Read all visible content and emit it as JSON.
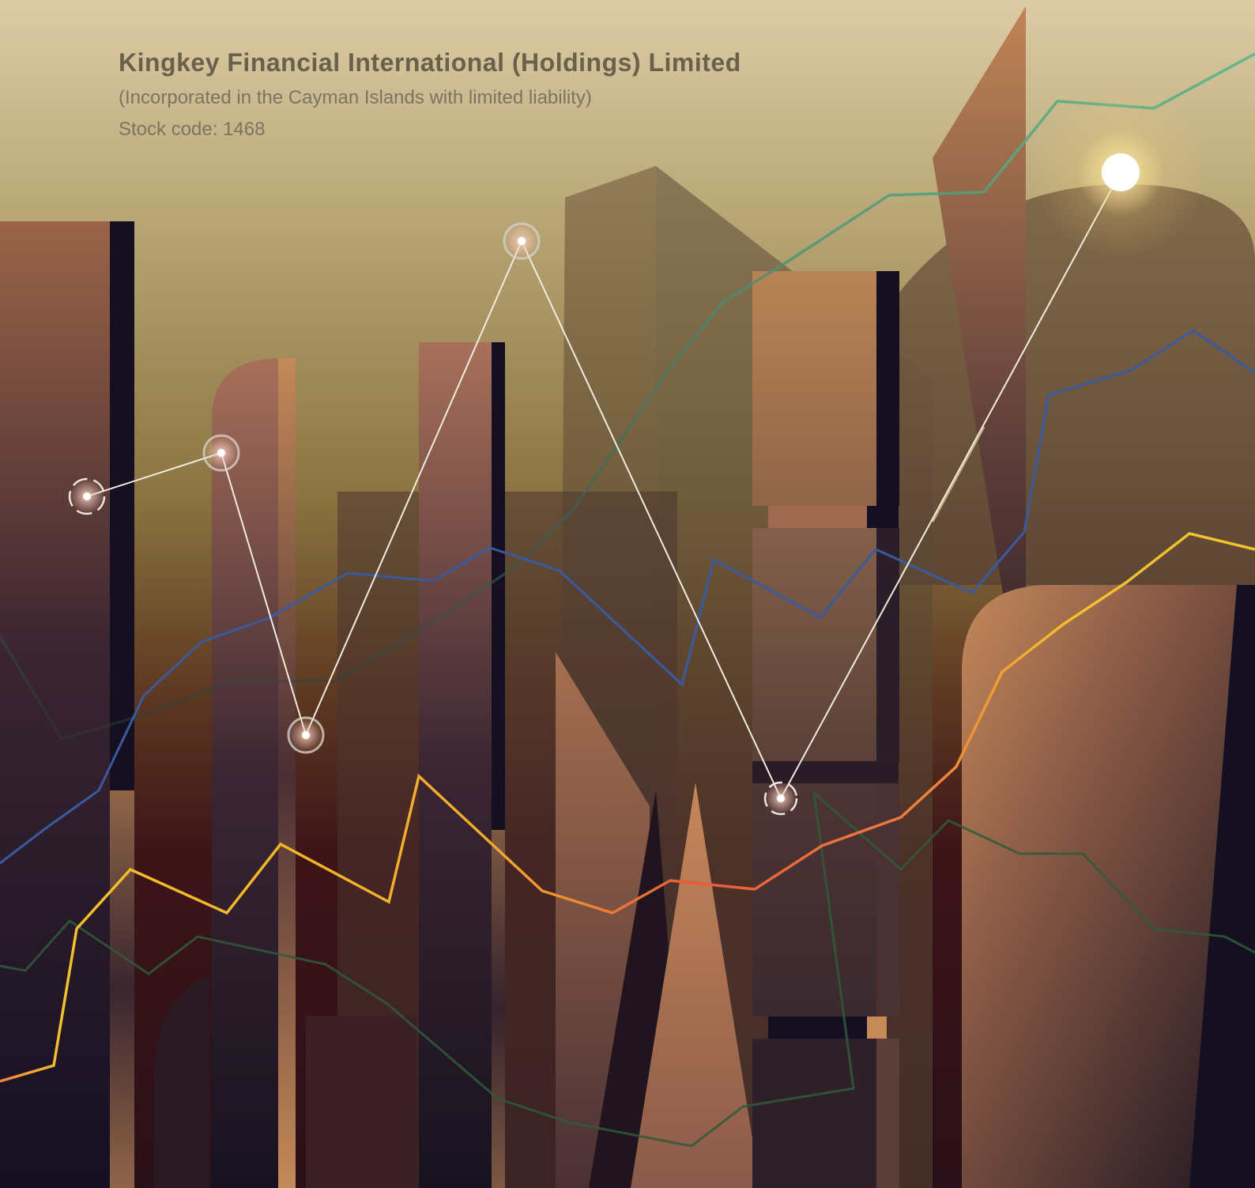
{
  "header": {
    "company_name": "Kingkey Financial International (Holdings) Limited",
    "incorporation": "(Incorporated in the Cayman Islands with limited liability)",
    "stock_code": "Stock code: 1468"
  },
  "colors": {
    "sky_top": "#dccca6",
    "sky_mid": "#9e8850",
    "sky_low": "#5e3a22",
    "ground": "#2e1318",
    "tower_light": "#b98455",
    "tower_dark": "#151022",
    "line_green": "#63b88a",
    "line_blue": "#3a5aa0",
    "line_yellow": "#f3c12c",
    "line_orange": "#e85a3a",
    "line_dark_green": "#2f5a3a",
    "line_white": "#f2ece0",
    "sun": "#fff6d8"
  }
}
